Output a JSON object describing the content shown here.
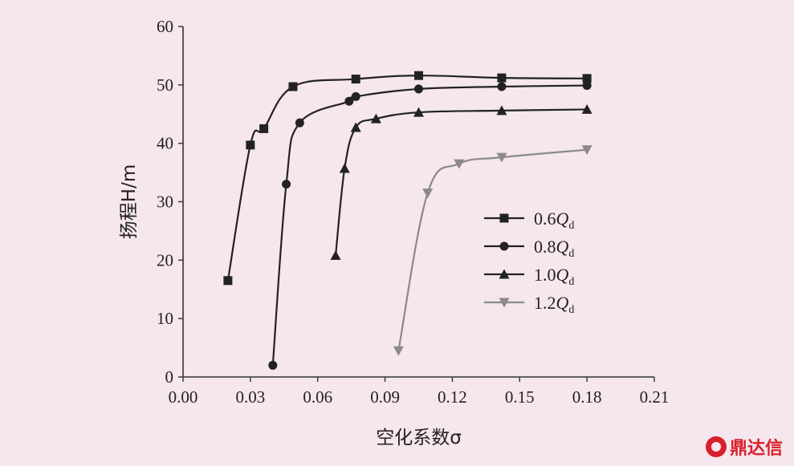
{
  "chart_data": {
    "type": "line",
    "xlabel": "空化系数σ",
    "ylabel": "扬程H/m",
    "xlim": [
      0.0,
      0.21
    ],
    "ylim": [
      0,
      60
    ],
    "xticks": [
      "0.00",
      "0.03",
      "0.06",
      "0.09",
      "0.12",
      "0.15",
      "0.18",
      "0.21"
    ],
    "yticks": [
      "0",
      "10",
      "20",
      "30",
      "40",
      "50",
      "60"
    ],
    "grid": false,
    "legend_position": "right-middle",
    "series": [
      {
        "name": "0.6Q",
        "name_sub": "d",
        "marker": "square",
        "color": "#222222",
        "x": [
          0.02,
          0.03,
          0.036,
          0.049,
          0.077,
          0.105,
          0.142,
          0.18
        ],
        "y": [
          16.5,
          39.7,
          42.5,
          49.7,
          51.0,
          51.6,
          51.2,
          51.1
        ]
      },
      {
        "name": "0.8Q",
        "name_sub": "d",
        "marker": "circle",
        "color": "#222222",
        "x": [
          0.04,
          0.046,
          0.052,
          0.074,
          0.077,
          0.105,
          0.142,
          0.18
        ],
        "y": [
          2.0,
          33.0,
          43.5,
          47.2,
          48.0,
          49.3,
          49.7,
          49.9
        ]
      },
      {
        "name": "1.0Q",
        "name_sub": "d",
        "marker": "triangle-up",
        "color": "#222222",
        "x": [
          0.068,
          0.072,
          0.077,
          0.086,
          0.105,
          0.142,
          0.18
        ],
        "y": [
          20.8,
          35.7,
          42.7,
          44.2,
          45.3,
          45.6,
          45.8
        ]
      },
      {
        "name": "1.2Q",
        "name_sub": "d",
        "marker": "triangle-down",
        "color": "#8a8a8a",
        "x": [
          0.096,
          0.109,
          0.123,
          0.142,
          0.18
        ],
        "y": [
          4.5,
          31.5,
          36.5,
          37.6,
          38.9
        ]
      }
    ]
  },
  "watermark": {
    "icon": "dingdaxin-logo-icon",
    "text": "鼎达信"
  }
}
